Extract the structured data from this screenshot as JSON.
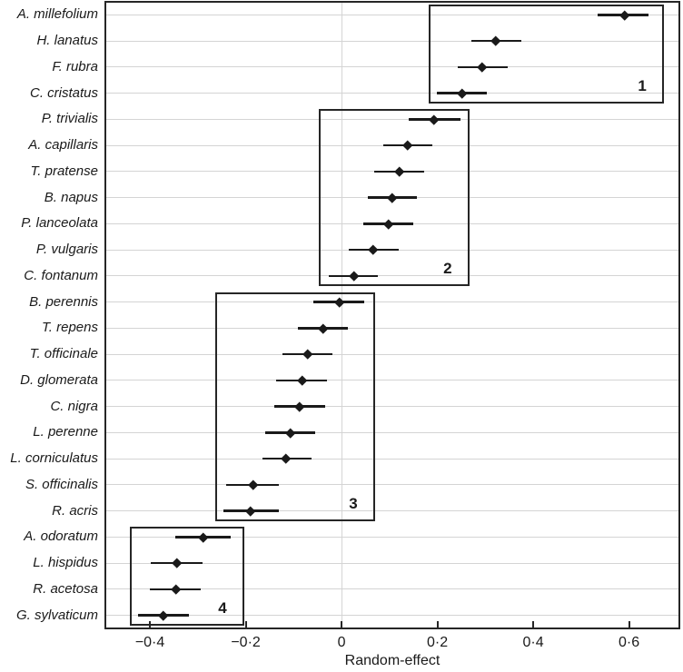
{
  "chart_data": {
    "type": "scatter",
    "subtype": "forest-plot-with-error-bars",
    "title": "",
    "xlabel": "Random-effect",
    "ylabel": "",
    "xlim": [
      -0.493,
      0.705
    ],
    "legend": "none",
    "grid": {
      "horizontal_row_lines": true,
      "vertical_zero_line": true
    },
    "x_ticks": [
      {
        "value": -0.4,
        "label": "−0·4"
      },
      {
        "value": -0.2,
        "label": "−0·2"
      },
      {
        "value": 0,
        "label": "0"
      },
      {
        "value": 0.2,
        "label": "0·2"
      },
      {
        "value": 0.4,
        "label": "0·4"
      },
      {
        "value": 0.6,
        "label": "0·6"
      }
    ],
    "species": [
      {
        "name": "A. millefolium",
        "effect": 0.59,
        "lo": 0.535,
        "hi": 0.64
      },
      {
        "name": "H. lanatus",
        "effect": 0.322,
        "lo": 0.27,
        "hi": 0.375
      },
      {
        "name": "F. rubra",
        "effect": 0.294,
        "lo": 0.242,
        "hi": 0.346
      },
      {
        "name": "C. cristatus",
        "effect": 0.252,
        "lo": 0.199,
        "hi": 0.304
      },
      {
        "name": "P. trivialis",
        "effect": 0.193,
        "lo": 0.14,
        "hi": 0.248
      },
      {
        "name": "A. capillaris",
        "effect": 0.138,
        "lo": 0.087,
        "hi": 0.19
      },
      {
        "name": "T. pratense",
        "effect": 0.121,
        "lo": 0.068,
        "hi": 0.173
      },
      {
        "name": "B. napus",
        "effect": 0.106,
        "lo": 0.054,
        "hi": 0.158
      },
      {
        "name": "P. lanceolata",
        "effect": 0.098,
        "lo": 0.046,
        "hi": 0.15
      },
      {
        "name": "P. vulgaris",
        "effect": 0.066,
        "lo": 0.015,
        "hi": 0.119
      },
      {
        "name": "C. fontanum",
        "effect": 0.025,
        "lo": -0.027,
        "hi": 0.076
      },
      {
        "name": "B. perennis",
        "effect": -0.005,
        "lo": -0.059,
        "hi": 0.047
      },
      {
        "name": "T. repens",
        "effect": -0.038,
        "lo": -0.091,
        "hi": 0.013
      },
      {
        "name": "T. officinale",
        "effect": -0.07,
        "lo": -0.123,
        "hi": -0.019
      },
      {
        "name": "D. glomerata",
        "effect": -0.083,
        "lo": -0.137,
        "hi": -0.031
      },
      {
        "name": "C. nigra",
        "effect": -0.088,
        "lo": -0.14,
        "hi": -0.035
      },
      {
        "name": "L. perenne",
        "effect": -0.106,
        "lo": -0.16,
        "hi": -0.055
      },
      {
        "name": "L. corniculatus",
        "effect": -0.117,
        "lo": -0.166,
        "hi": -0.063
      },
      {
        "name": "S. officinalis",
        "effect": -0.185,
        "lo": -0.24,
        "hi": -0.131
      },
      {
        "name": "R. acris",
        "effect": -0.19,
        "lo": -0.246,
        "hi": -0.131
      },
      {
        "name": "A. odoratum",
        "effect": -0.288,
        "lo": -0.347,
        "hi": -0.231
      },
      {
        "name": "L. hispidus",
        "effect": -0.343,
        "lo": -0.398,
        "hi": -0.29
      },
      {
        "name": "R. acetosa",
        "effect": -0.345,
        "lo": -0.4,
        "hi": -0.294
      },
      {
        "name": "G. sylvaticum",
        "effect": -0.372,
        "lo": -0.425,
        "hi": -0.318
      }
    ],
    "groups": [
      {
        "label": "1",
        "row_from": 0,
        "row_to": 3,
        "x0": 0.184,
        "x1": 0.671
      },
      {
        "label": "2",
        "row_from": 4,
        "row_to": 10,
        "x0": -0.045,
        "x1": 0.265
      },
      {
        "label": "3",
        "row_from": 11,
        "row_to": 19,
        "x0": -0.262,
        "x1": 0.068
      },
      {
        "label": "4",
        "row_from": 20,
        "row_to": 23,
        "x0": -0.44,
        "x1": -0.205
      }
    ]
  },
  "colors": {
    "data": "#1a1a1a",
    "frame": "#262626",
    "grid": "#d4d4d4",
    "text": "#1a1a1a",
    "background": "#ffffff"
  }
}
